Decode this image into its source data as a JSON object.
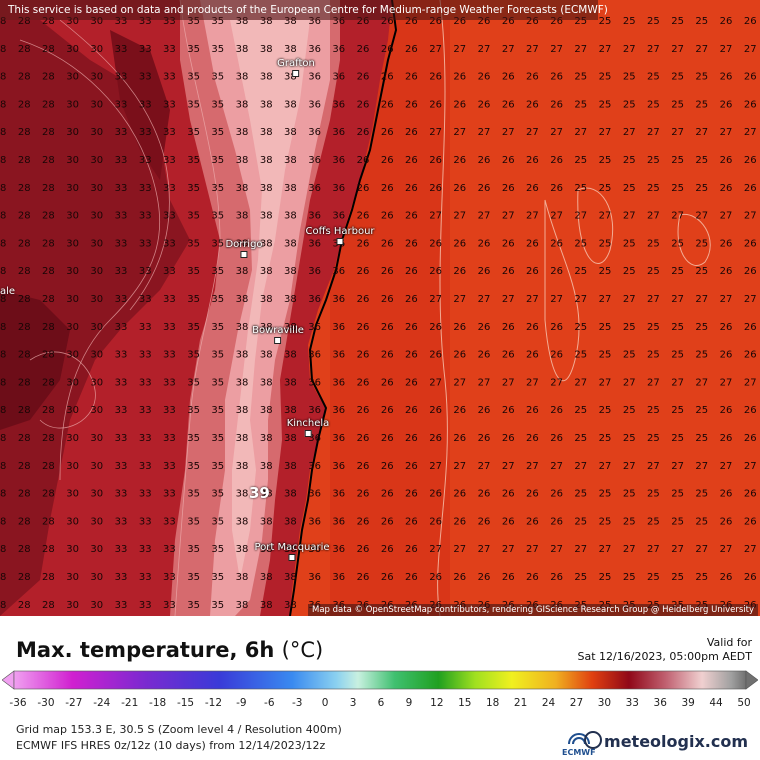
{
  "map": {
    "disclaimer": "This service is based on data and products of the European Centre for Medium-range Weather Forecasts (ECMWF)",
    "attribution": "Map data © OpenStreetMap contributors, rendering GIScience Research Group @ Heidelberg University",
    "cities": [
      {
        "name": "Grafton"
      },
      {
        "name": "Coffs Harbour"
      },
      {
        "name": "Dorrigo"
      },
      {
        "name": "Bowraville"
      },
      {
        "name": "Kinchela"
      },
      {
        "name": "Port Macquarie"
      }
    ],
    "edge_label": "ale",
    "highlight_value": "39"
  },
  "colors": {
    "ocean": "#e0401a",
    "coast_hot": "#f2b8b8",
    "inland_dark": "#7a0f1a",
    "inland_mid": "#b3202a"
  },
  "legend": {
    "title": "Max. temperature, 6h",
    "unit": "(°C)",
    "valid_label": "Valid for",
    "valid_time": "Sat 12/16/2023, 05:00pm AEDT",
    "ticks": [
      "-36",
      "-30",
      "-27",
      "-24",
      "-21",
      "-18",
      "-15",
      "-12",
      "-9",
      "-6",
      "-3",
      "0",
      "3",
      "6",
      "9",
      "12",
      "15",
      "18",
      "21",
      "24",
      "27",
      "30",
      "33",
      "36",
      "39",
      "44",
      "50"
    ],
    "grid_line": "Grid map 153.3 E, 30.5 S (Zoom level 4 / Resolution 400m)",
    "model_line": "ECMWF IFS HRES 0z/12z (10 days) from 12/14/2023/12z"
  },
  "branding": {
    "ecmwf": "ECMWF",
    "site": "meteologix.com"
  }
}
